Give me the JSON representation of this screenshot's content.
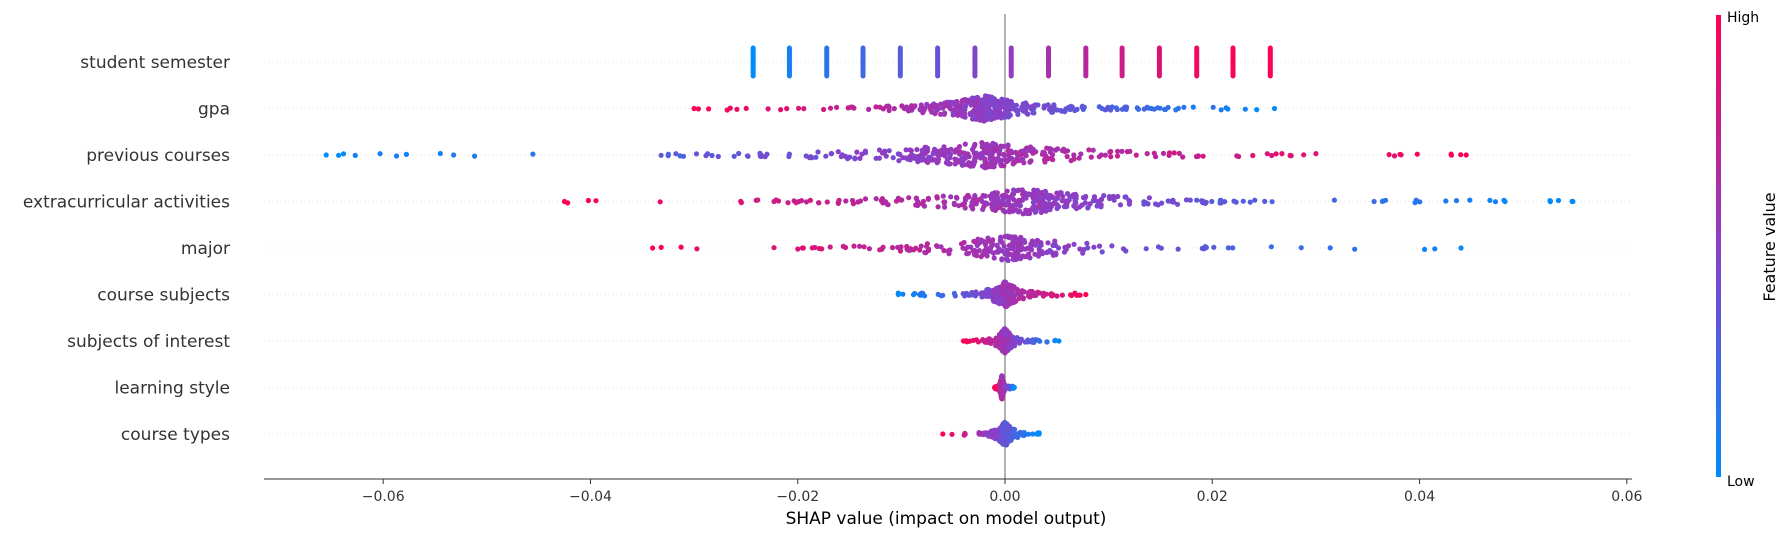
{
  "chart_data": {
    "type": "scatter",
    "subtype": "shap-beeswarm",
    "title": "",
    "xlabel": "SHAP value (impact on model output)",
    "xlim": [
      -0.0715,
      0.0605
    ],
    "xticks": [
      -0.06,
      -0.04,
      -0.02,
      0.0,
      0.02,
      0.04,
      0.06
    ],
    "xtick_labels": [
      "−0.06",
      "−0.04",
      "−0.02",
      "0.00",
      "0.02",
      "0.04",
      "0.06"
    ],
    "zero_line": 0.0,
    "colors": {
      "low": "#008bfb",
      "high": "#ff0052",
      "mid": "#8b3fc7",
      "axis": "#333333",
      "zero_line": "#999999",
      "grid": "#cccccc"
    },
    "colorbar": {
      "title": "Feature value",
      "high_label": "High",
      "low_label": "Low"
    },
    "features": [
      {
        "name": "student semester",
        "style": "discrete",
        "clusters": [
          {
            "x": -0.0243,
            "c": 0.0
          },
          {
            "x": -0.0208,
            "c": 0.08
          },
          {
            "x": -0.0172,
            "c": 0.15
          },
          {
            "x": -0.0137,
            "c": 0.23
          },
          {
            "x": -0.0101,
            "c": 0.31
          },
          {
            "x": -0.0065,
            "c": 0.38
          },
          {
            "x": -0.0029,
            "c": 0.46
          },
          {
            "x": 0.0006,
            "c": 0.54
          },
          {
            "x": 0.0042,
            "c": 0.62
          },
          {
            "x": 0.0078,
            "c": 0.69
          },
          {
            "x": 0.0113,
            "c": 0.77
          },
          {
            "x": 0.0149,
            "c": 0.85
          },
          {
            "x": 0.0185,
            "c": 0.92
          },
          {
            "x": 0.022,
            "c": 0.97
          },
          {
            "x": 0.0256,
            "c": 1.0
          }
        ]
      },
      {
        "name": "gpa",
        "style": "continuous",
        "range": [
          -0.03,
          0.026
        ],
        "peak": [
          -0.002,
          0.0
        ],
        "trend": "decreasing",
        "density": 1.0
      },
      {
        "name": "previous courses",
        "style": "continuous",
        "range": [
          -0.0655,
          0.0445
        ],
        "peak": [
          -0.002,
          0.0
        ],
        "trend": "increasing",
        "density": 0.9
      },
      {
        "name": "extracurricular activities",
        "style": "continuous",
        "range": [
          -0.0425,
          0.0548
        ],
        "peak": [
          0.002,
          0.0
        ],
        "trend": "decreasing",
        "density": 0.9
      },
      {
        "name": "major",
        "style": "continuous",
        "range": [
          -0.034,
          0.044
        ],
        "peak": [
          0.0003,
          0.0
        ],
        "trend": "decreasing",
        "density": 0.55
      },
      {
        "name": "course subjects",
        "style": "continuous",
        "range": [
          -0.0103,
          0.0078
        ],
        "peak": [
          0.0,
          0.0
        ],
        "trend": "increasing",
        "density": 0.6
      },
      {
        "name": "subjects of interest",
        "style": "continuous",
        "range": [
          -0.004,
          0.0052
        ],
        "peak": [
          0.0,
          0.0
        ],
        "trend": "decreasing",
        "density": 0.45
      },
      {
        "name": "learning style",
        "style": "continuous",
        "range": [
          -0.001,
          0.0009
        ],
        "peak": [
          -0.0003,
          0.0
        ],
        "trend": "decreasing",
        "density": 0.5
      },
      {
        "name": "course types",
        "style": "continuous",
        "range": [
          -0.006,
          0.0033
        ],
        "peak": [
          0.0,
          0.0
        ],
        "trend": "decreasing",
        "density": 0.45
      }
    ]
  }
}
